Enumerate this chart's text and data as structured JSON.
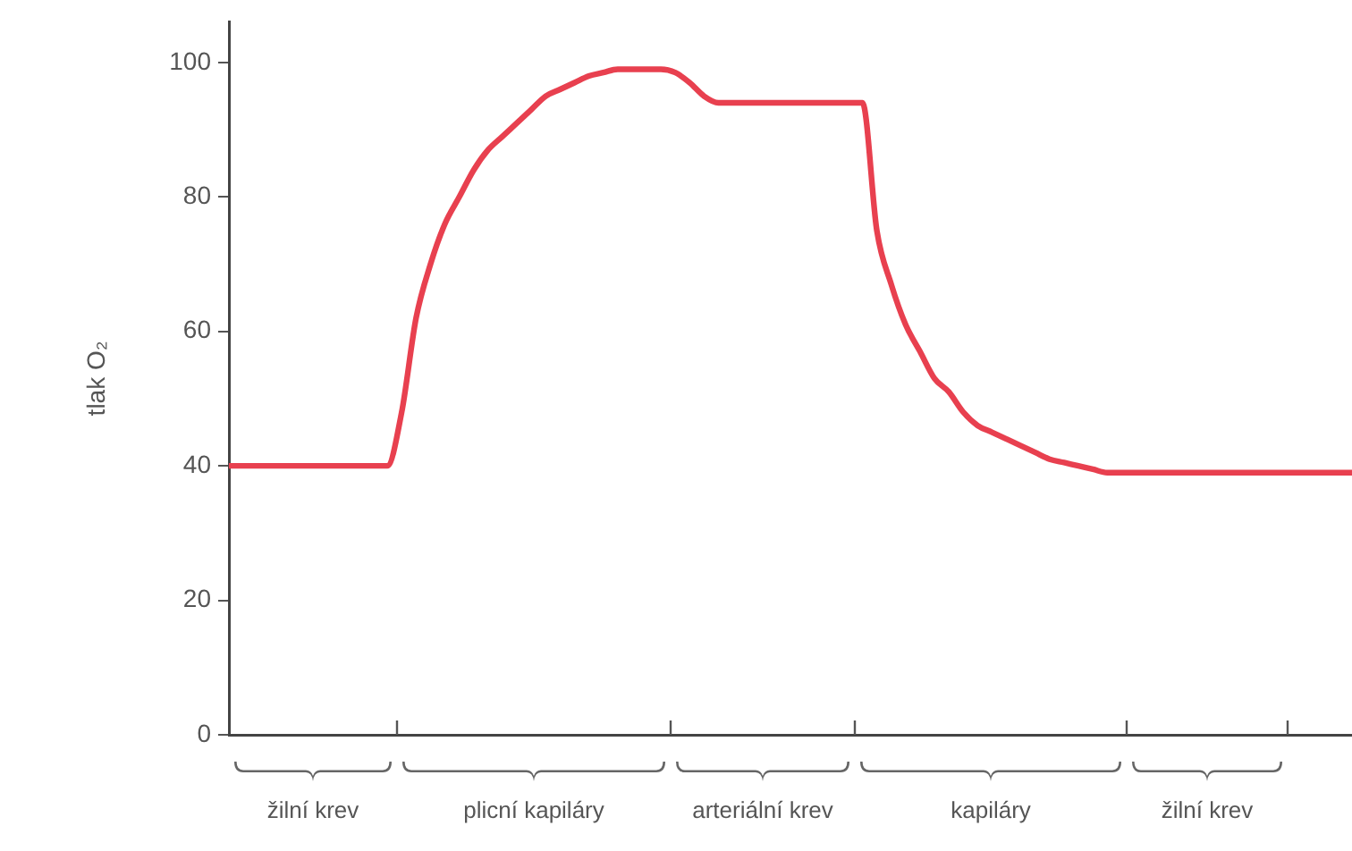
{
  "chart_data": {
    "type": "line",
    "ylabel": "tlak O₂",
    "categories": [
      null,
      null,
      null,
      null,
      null,
      null,
      null,
      null,
      null,
      null,
      null,
      null,
      null,
      null,
      null,
      null,
      null,
      null,
      null,
      null,
      null,
      null,
      null,
      null,
      null,
      null,
      null,
      null,
      null,
      null,
      null,
      null,
      null,
      null,
      null,
      null,
      null,
      null,
      null,
      null,
      null,
      null,
      null,
      null,
      null,
      null,
      null,
      null,
      null,
      null,
      null,
      null,
      null,
      null,
      null,
      null,
      null,
      null,
      null,
      null,
      null,
      null,
      null,
      null,
      null,
      null,
      null,
      null,
      null,
      null,
      null,
      null,
      null,
      null,
      null,
      null,
      null,
      null,
      null
    ],
    "values": [
      40,
      40,
      40,
      40,
      40,
      40,
      40,
      40,
      40,
      40,
      40,
      40,
      48,
      62,
      70,
      76,
      80,
      84,
      87,
      89,
      91,
      93,
      95,
      96,
      97,
      98,
      98.5,
      99,
      99,
      99,
      99,
      98.5,
      97,
      95,
      94,
      94,
      94,
      94,
      94,
      94,
      94,
      94,
      94,
      94,
      94,
      75,
      67,
      61,
      57,
      53,
      51,
      48,
      46,
      45,
      44,
      43,
      42,
      41,
      40.5,
      40,
      39.5,
      39,
      39,
      39,
      39,
      39,
      39,
      39,
      39,
      39,
      39,
      39,
      39,
      39,
      39,
      39,
      39,
      39,
      39
    ],
    "color": "#e8404f",
    "marker": "none",
    "ylim": [
      0,
      106
    ],
    "yticks": [
      0,
      20,
      40,
      60,
      80,
      100
    ],
    "annotations": [
      "žilní krev",
      "plicní kapiláry",
      "arteriální krev",
      "kapiláry",
      "žilní krev"
    ]
  }
}
